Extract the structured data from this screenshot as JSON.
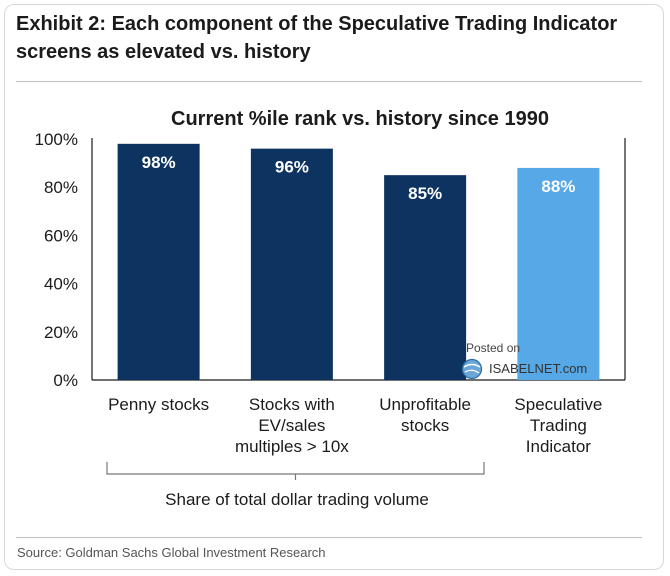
{
  "exhibit_title": "Exhibit 2: Each component of the Speculative Trading Indicator screens as elevated vs. history",
  "source": "Source: Goldman Sachs Global Investment Research",
  "watermark": {
    "posted": "Posted on",
    "site": "ISABELNET.com"
  },
  "chart_data": {
    "type": "bar",
    "title": "Current %ile rank vs. history since 1990",
    "categories": [
      [
        "Penny stocks"
      ],
      [
        "Stocks with",
        "EV/sales",
        "multiples > 10x"
      ],
      [
        "Unprofitable",
        "stocks"
      ],
      [
        "Speculative",
        "Trading",
        "Indicator"
      ]
    ],
    "values": [
      98,
      96,
      85,
      88
    ],
    "value_labels": [
      "98%",
      "96%",
      "85%",
      "88%"
    ],
    "colors": [
      "#0d3461",
      "#0d3461",
      "#0d3461",
      "#56a8e6"
    ],
    "ylim": [
      0,
      100
    ],
    "yticks": [
      0,
      20,
      40,
      60,
      80,
      100
    ],
    "ytick_labels": [
      "0%",
      "20%",
      "40%",
      "60%",
      "80%",
      "100%"
    ],
    "grid": false,
    "bracket_label": "Share of total dollar trading volume",
    "bracket_span": [
      "Penny stocks",
      "Unprofitable stocks"
    ]
  }
}
